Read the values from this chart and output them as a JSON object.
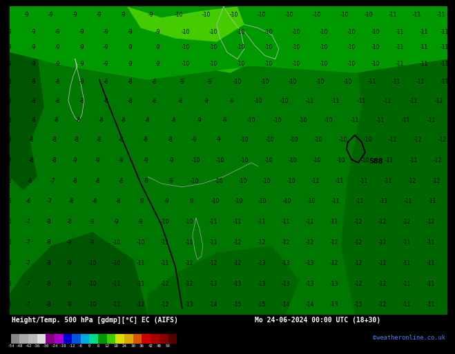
{
  "title_left": "Height/Temp. 500 hPa [gdmp][°C] EC (AIFS)",
  "title_right": "Mo 24-06-2024 00:00 UTC (18+30)",
  "credit": "©weatheronline.co.uk",
  "colorbar_values": [
    -54,
    -48,
    -42,
    -36,
    -30,
    -24,
    -18,
    -12,
    -6,
    0,
    6,
    12,
    18,
    24,
    30,
    36,
    42,
    48,
    54
  ],
  "colorbar_colors": [
    "#888888",
    "#aaaaaa",
    "#bbbbbb",
    "#dddddd",
    "#880088",
    "#aa00cc",
    "#0000cc",
    "#0055dd",
    "#00aadd",
    "#00dd88",
    "#009900",
    "#44cc00",
    "#dddd00",
    "#ddaa00",
    "#dd5500",
    "#cc0000",
    "#aa0000",
    "#880000",
    "#550000"
  ],
  "bg_color": "#000000",
  "map_dark_green": "#006600",
  "map_mid_green": "#008800",
  "map_bright_green": "#00bb00",
  "map_light_green": "#33cc00",
  "map_pale_green": "#66dd33",
  "contour_black": "#000000",
  "contour_gray": "#aaaaaa",
  "label_color": "#000000",
  "bottom_bar_color": "#000000",
  "bar_label_color": "#ffffff",
  "bar_credit_color": "#4488ff"
}
